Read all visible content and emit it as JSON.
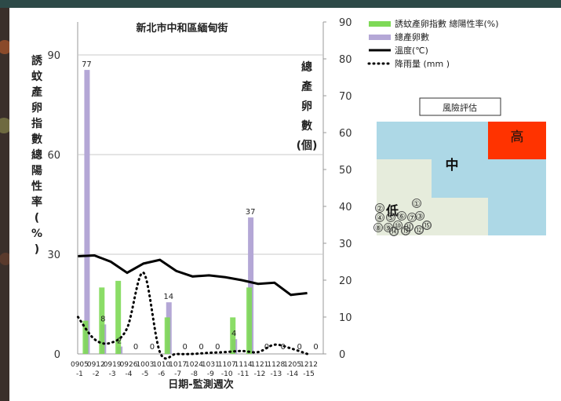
{
  "chart_data": {
    "type": "bar+line",
    "title": "新北市中和區緬甸街",
    "xlabel": "日期-監測週次",
    "ylabel_left": [
      "誘",
      "蚊",
      "產",
      "卵",
      "指",
      "數",
      "總",
      "陽",
      "性",
      "率",
      "(",
      "%",
      ")"
    ],
    "ylabel_right": [
      "總",
      "產",
      "卵",
      "數",
      "(個)"
    ],
    "categories": [
      [
        "0905",
        "-1"
      ],
      [
        "0912",
        "-2"
      ],
      [
        "0919",
        "-3"
      ],
      [
        "0926",
        "-4"
      ],
      [
        "1003",
        "-5"
      ],
      [
        "1010",
        "-6"
      ],
      [
        "1017",
        "-7"
      ],
      [
        "1024",
        "-8"
      ],
      [
        "1031",
        "-9"
      ],
      [
        "1107",
        "-10"
      ],
      [
        "1114",
        "-11"
      ],
      [
        "1121",
        "-12"
      ],
      [
        "1128",
        "-13"
      ],
      [
        "1205",
        "-14"
      ],
      [
        "1212",
        "-15"
      ]
    ],
    "left_axis": {
      "ylim": [
        0,
        90
      ],
      "ticks": [
        "0",
        "30",
        "60",
        "90"
      ]
    },
    "right_axis": {
      "ylim": [
        0,
        90
      ],
      "ticks": [
        "0",
        "10",
        "20",
        "30",
        "40",
        "50",
        "60",
        "70",
        "80",
        "90"
      ]
    },
    "series": [
      {
        "name": "誘蚊產卵指數 總陽性率(%)",
        "kind": "bar",
        "axis": "left",
        "color": "#7ed957",
        "values": [
          10,
          20,
          22,
          0,
          0,
          11,
          0,
          0,
          0,
          11,
          20,
          0,
          0,
          0,
          0
        ]
      },
      {
        "name": "總產卵數",
        "kind": "bar",
        "axis": "right",
        "color": "#b4a7d6",
        "values": [
          77,
          8,
          2,
          0,
          0,
          14,
          0,
          0,
          0,
          4,
          37,
          0,
          0,
          0,
          0
        ],
        "labels": [
          "77",
          "8",
          "2",
          "0",
          "0",
          "14",
          "0",
          "0",
          "0",
          "4",
          "37",
          "0",
          "0",
          "0",
          "0"
        ]
      },
      {
        "name": "溫度(℃)",
        "kind": "line",
        "axis": "right",
        "color": "#000000",
        "values": [
          26.5,
          26.7,
          25,
          22,
          24.5,
          25.5,
          22.5,
          21,
          21.3,
          20.8,
          20,
          19,
          19.3,
          16,
          16.5
        ]
      },
      {
        "name": "降雨量 (mm )",
        "kind": "dotted",
        "axis": "right",
        "color": "#000000",
        "values": [
          10,
          4,
          3,
          7,
          22,
          0.5,
          0,
          0,
          0.3,
          0.5,
          0.8,
          0.5,
          2.5,
          1.5,
          0
        ]
      }
    ],
    "grid": true,
    "legend_position": "top-right"
  },
  "risk": {
    "title": "風險評估",
    "high": "高",
    "mid": "中",
    "low": "低",
    "circles": [
      "①",
      "②",
      "③",
      "④",
      "⑤",
      "⑥",
      "⑦",
      "⑧",
      "⑨",
      "⑩",
      "⑪",
      "⑫",
      "⑬",
      "⑭",
      "⑮"
    ],
    "colors": {
      "low": "#e6ecdc",
      "mid": "#add8e6",
      "high": "#ff3300"
    }
  }
}
